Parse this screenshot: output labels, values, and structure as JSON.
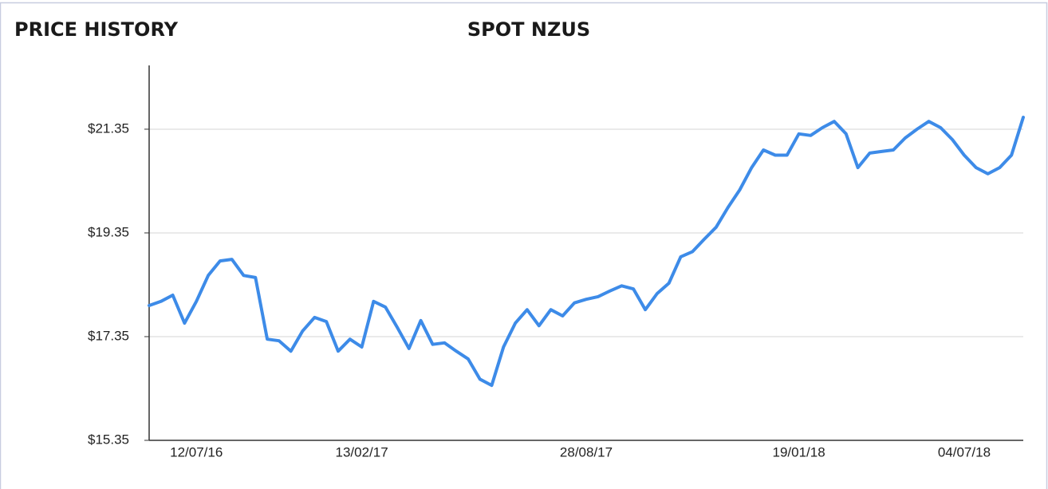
{
  "panel_title": "PRICE HISTORY",
  "chart_data": {
    "type": "line",
    "title": "SPOT NZUS",
    "categories": [
      null,
      null,
      null,
      null,
      "12/07/16",
      null,
      null,
      null,
      null,
      null,
      null,
      null,
      null,
      null,
      null,
      null,
      null,
      null,
      "13/02/17",
      null,
      null,
      null,
      null,
      null,
      null,
      null,
      null,
      null,
      null,
      null,
      null,
      null,
      null,
      null,
      null,
      null,
      null,
      "28/08/17",
      null,
      null,
      null,
      null,
      null,
      null,
      null,
      null,
      null,
      null,
      null,
      null,
      null,
      null,
      null,
      null,
      null,
      "19/01/18",
      null,
      null,
      null,
      null,
      null,
      null,
      null,
      null,
      null,
      null,
      null,
      null,
      null,
      "04/07/18",
      null,
      null,
      null,
      null,
      null
    ],
    "series": [
      {
        "name": "SPOT NZUS",
        "color": "#3d8be8",
        "values": [
          17.95,
          18.03,
          18.15,
          17.61,
          18.03,
          18.53,
          18.81,
          18.84,
          18.53,
          18.49,
          17.3,
          17.27,
          17.07,
          17.46,
          17.72,
          17.64,
          17.07,
          17.3,
          17.15,
          18.03,
          17.92,
          17.53,
          17.12,
          17.66,
          17.2,
          17.23,
          17.07,
          16.92,
          16.53,
          16.41,
          17.15,
          17.61,
          17.87,
          17.56,
          17.87,
          17.75,
          18.0,
          18.07,
          18.12,
          18.23,
          18.33,
          18.27,
          17.87,
          18.18,
          18.38,
          18.89,
          18.99,
          19.23,
          19.46,
          19.84,
          20.18,
          20.61,
          20.95,
          20.85,
          20.85,
          21.26,
          21.23,
          21.38,
          21.5,
          21.26,
          20.61,
          20.89,
          20.92,
          20.95,
          21.18,
          21.35,
          21.5,
          21.38,
          21.15,
          20.85,
          20.61,
          20.49,
          20.61,
          20.85,
          21.58
        ]
      }
    ],
    "ylim": [
      15.35,
      22.58
    ],
    "yticks": [
      {
        "value": 15.35,
        "label": "$15.35"
      },
      {
        "value": 17.35,
        "label": "$17.35"
      },
      {
        "value": 19.35,
        "label": "$19.35"
      },
      {
        "value": 21.35,
        "label": "$21.35"
      }
    ],
    "grid": true
  }
}
